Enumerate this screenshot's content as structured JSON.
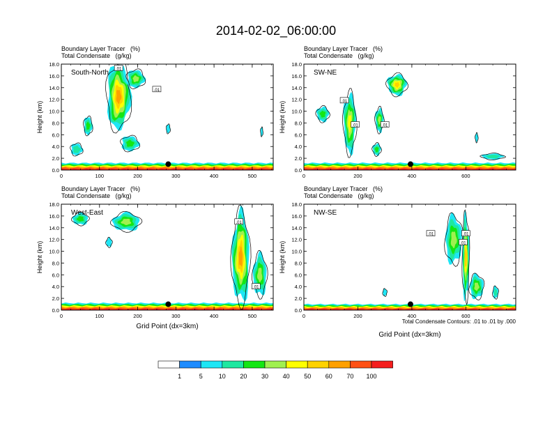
{
  "page": {
    "title": "2014-02-02_06:00:00",
    "footnote": "Total Condensate Contours: .01 to .01 by .000"
  },
  "colorbar": {
    "colors": [
      "#ffffff",
      "#1e8cff",
      "#1ee6f5",
      "#1ee8a0",
      "#14e614",
      "#a0f050",
      "#ffff00",
      "#ffd200",
      "#ffa000",
      "#ff5014",
      "#f51e1e"
    ],
    "labels": [
      "1",
      "5",
      "10",
      "20",
      "30",
      "40",
      "50",
      "60",
      "70",
      "100"
    ]
  },
  "chart_data": [
    {
      "type": "heatmap",
      "panel": "top-left",
      "name": "South-North",
      "header_line1": "Boundary Layer Tracer   (%)",
      "header_line2": "Total Condensate   (g/kg)",
      "ylabel": "Height (km)",
      "xlabel": "",
      "xlim": [
        0,
        555
      ],
      "ylim": [
        0,
        18
      ],
      "xticks": [
        0,
        100,
        200,
        300,
        400,
        500
      ],
      "yticks": [
        0.0,
        2.0,
        4.0,
        6.0,
        8.0,
        10.0,
        12.0,
        14.0,
        16.0,
        18.0
      ],
      "contour_labels": [
        {
          "text": ".01",
          "x": 150,
          "y": 17.3
        },
        {
          "text": ".01",
          "x": 250,
          "y": 13.7
        }
      ],
      "marker": {
        "x": 280,
        "y": 1.0
      },
      "features": [
        {
          "kind": "boundary",
          "x0": 0,
          "x1": 555,
          "top": 1.2
        },
        {
          "kind": "blob",
          "x": 150,
          "y": 12.5,
          "w": 60,
          "h": 11,
          "level": 7
        },
        {
          "kind": "blob",
          "x": 195,
          "y": 15.5,
          "w": 45,
          "h": 3,
          "level": 4
        },
        {
          "kind": "blob",
          "x": 70,
          "y": 7.5,
          "w": 22,
          "h": 3,
          "level": 3
        },
        {
          "kind": "blob",
          "x": 40,
          "y": 3.5,
          "w": 30,
          "h": 2,
          "level": 2
        },
        {
          "kind": "blob",
          "x": 180,
          "y": 4.5,
          "w": 45,
          "h": 2.5,
          "level": 3
        },
        {
          "kind": "blob",
          "x": 280,
          "y": 7.0,
          "w": 10,
          "h": 1.5,
          "level": 1
        },
        {
          "kind": "blob",
          "x": 525,
          "y": 6.5,
          "w": 6,
          "h": 1.5,
          "level": 1
        }
      ]
    },
    {
      "type": "heatmap",
      "panel": "top-right",
      "name": "SW-NE",
      "header_line1": "Boundary Layer Tracer   (%)",
      "header_line2": "Total Condensate   (g/kg)",
      "ylabel": "Height (km)",
      "xlabel": "",
      "xlim": [
        0,
        785
      ],
      "ylim": [
        0,
        18
      ],
      "xticks": [
        0,
        200,
        400,
        600
      ],
      "yticks": [
        0.0,
        2.0,
        4.0,
        6.0,
        8.0,
        10.0,
        12.0,
        14.0,
        16.0,
        18.0
      ],
      "contour_labels": [
        {
          "text": ".01",
          "x": 150,
          "y": 11.8
        },
        {
          "text": ".01",
          "x": 190,
          "y": 7.7
        },
        {
          "text": ".01",
          "x": 300,
          "y": 7.7
        }
      ],
      "marker": {
        "x": 395,
        "y": 1.0
      },
      "features": [
        {
          "kind": "boundary",
          "x0": 0,
          "x1": 785,
          "top": 1.2
        },
        {
          "kind": "blob",
          "x": 345,
          "y": 14.5,
          "w": 70,
          "h": 3.5,
          "level": 6
        },
        {
          "kind": "blob",
          "x": 170,
          "y": 8.0,
          "w": 45,
          "h": 10,
          "level": 5
        },
        {
          "kind": "blob",
          "x": 70,
          "y": 9.5,
          "w": 45,
          "h": 2.5,
          "level": 3
        },
        {
          "kind": "blob",
          "x": 280,
          "y": 8.5,
          "w": 30,
          "h": 4,
          "level": 4
        },
        {
          "kind": "blob",
          "x": 270,
          "y": 3.5,
          "w": 30,
          "h": 2,
          "level": 3
        },
        {
          "kind": "blob",
          "x": 640,
          "y": 5.5,
          "w": 10,
          "h": 1.5,
          "level": 1
        },
        {
          "kind": "blob",
          "x": 700,
          "y": 2.3,
          "w": 80,
          "h": 1,
          "level": 2
        }
      ]
    },
    {
      "type": "heatmap",
      "panel": "bottom-left",
      "name": "West-East",
      "header_line1": "Boundary Layer Tracer   (%)",
      "header_line2": "Total Condensate   (g/kg)",
      "ylabel": "Height (km)",
      "xlabel": "Grid Point (dx=3km)",
      "xlim": [
        0,
        555
      ],
      "ylim": [
        0,
        18
      ],
      "xticks": [
        0,
        100,
        200,
        300,
        400,
        500
      ],
      "yticks": [
        0.0,
        2.0,
        4.0,
        6.0,
        8.0,
        10.0,
        12.0,
        14.0,
        16.0,
        18.0
      ],
      "contour_labels": [
        {
          "text": ".01",
          "x": 465,
          "y": 15.0
        },
        {
          "text": ".01",
          "x": 510,
          "y": 4.0
        }
      ],
      "marker": {
        "x": 280,
        "y": 1.0
      },
      "features": [
        {
          "kind": "boundary",
          "x0": 0,
          "x1": 555,
          "top": 1.2
        },
        {
          "kind": "blob",
          "x": 470,
          "y": 9.0,
          "w": 45,
          "h": 15,
          "level": 7
        },
        {
          "kind": "blob",
          "x": 520,
          "y": 6.0,
          "w": 35,
          "h": 7,
          "level": 4
        },
        {
          "kind": "blob",
          "x": 170,
          "y": 15.0,
          "w": 70,
          "h": 3,
          "level": 4
        },
        {
          "kind": "blob",
          "x": 50,
          "y": 15.5,
          "w": 40,
          "h": 2,
          "level": 3
        },
        {
          "kind": "blob",
          "x": 125,
          "y": 11.5,
          "w": 15,
          "h": 1.5,
          "level": 1
        }
      ]
    },
    {
      "type": "heatmap",
      "panel": "bottom-right",
      "name": "NW-SE",
      "header_line1": "Boundary Layer Tracer   (%)",
      "header_line2": "Total Condensate   (g/kg)",
      "ylabel": "Height (km)",
      "xlabel": "Grid Point (dx=3km)",
      "xlim": [
        0,
        785
      ],
      "ylim": [
        0,
        18
      ],
      "xticks": [
        0,
        200,
        400,
        600
      ],
      "yticks": [
        0.0,
        2.0,
        4.0,
        6.0,
        8.0,
        10.0,
        12.0,
        14.0,
        16.0,
        18.0
      ],
      "contour_labels": [
        {
          "text": ".01",
          "x": 470,
          "y": 13.0
        },
        {
          "text": ".01",
          "x": 600,
          "y": 13.0
        },
        {
          "text": ".01",
          "x": 590,
          "y": 11.5
        }
      ],
      "marker": {
        "x": 395,
        "y": 1.0
      },
      "features": [
        {
          "kind": "boundary",
          "x0": 0,
          "x1": 785,
          "top": 1.0
        },
        {
          "kind": "blob",
          "x": 555,
          "y": 12.0,
          "w": 60,
          "h": 8,
          "level": 4
        },
        {
          "kind": "blob",
          "x": 600,
          "y": 9.0,
          "w": 25,
          "h": 14,
          "level": 6
        },
        {
          "kind": "blob",
          "x": 640,
          "y": 4.0,
          "w": 50,
          "h": 4,
          "level": 4
        },
        {
          "kind": "blob",
          "x": 710,
          "y": 3.0,
          "w": 20,
          "h": 2,
          "level": 2
        },
        {
          "kind": "blob",
          "x": 300,
          "y": 3.0,
          "w": 15,
          "h": 1.2,
          "level": 1
        }
      ]
    }
  ]
}
